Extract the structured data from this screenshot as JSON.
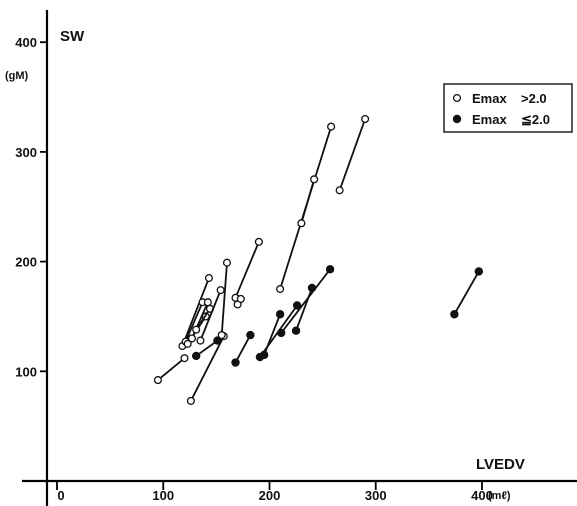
{
  "chart_data": {
    "type": "scatter",
    "xlabel": "LVEDV",
    "xunit": "(mℓ)",
    "ylabel": "SW",
    "yunit": "(gM)",
    "xlim": [
      -10,
      460
    ],
    "ylim": [
      0,
      430
    ],
    "x_ticks": [
      0,
      100,
      200,
      300,
      400
    ],
    "x_tick_labels": [
      "0",
      "100",
      "200",
      "300",
      "400"
    ],
    "y_ticks": [
      100,
      200,
      300,
      400
    ],
    "y_tick_labels": [
      "100",
      "200",
      "300",
      "400"
    ],
    "grid": false,
    "legend_position": "top-right",
    "series": [
      {
        "name": "Emax",
        "condition": ">2.0",
        "marker": "open-circle",
        "pairs": [
          [
            [
              95,
              92
            ],
            [
              120,
              112
            ]
          ],
          [
            [
              118,
              123
            ],
            [
              143,
              185
            ]
          ],
          [
            [
              121,
              127
            ],
            [
              137,
              163
            ]
          ],
          [
            [
              123,
              125
            ],
            [
              140,
              150
            ]
          ],
          [
            [
              127,
              130
            ],
            [
              142,
              163
            ]
          ],
          [
            [
              131,
              138
            ],
            [
              144,
              157
            ]
          ],
          [
            [
              135,
              128
            ],
            [
              154,
              174
            ]
          ],
          [
            [
              126,
              73
            ],
            [
              157,
              132
            ]
          ],
          [
            [
              155,
              133
            ],
            [
              160,
              199
            ]
          ],
          [
            [
              168,
              167
            ],
            [
              190,
              218
            ]
          ],
          [
            [
              170,
              161
            ],
            [
              173,
              166
            ]
          ],
          [
            [
              210,
              175
            ],
            [
              258,
              323
            ]
          ],
          [
            [
              230,
              235
            ],
            [
              242,
              275
            ]
          ],
          [
            [
              266,
              265
            ],
            [
              290,
              330
            ]
          ]
        ]
      },
      {
        "name": "Emax",
        "condition": "≦2.0",
        "marker": "filled-circle",
        "pairs": [
          [
            [
              131,
              114
            ],
            [
              151,
              128
            ]
          ],
          [
            [
              168,
              108
            ],
            [
              182,
              133
            ]
          ],
          [
            [
              191,
              113
            ],
            [
              226,
              160
            ]
          ],
          [
            [
              195,
              115
            ],
            [
              210,
              152
            ]
          ],
          [
            [
              211,
              135
            ],
            [
              257,
              193
            ]
          ],
          [
            [
              225,
              137
            ],
            [
              240,
              176
            ]
          ],
          [
            [
              374,
              152
            ],
            [
              397,
              191
            ]
          ]
        ]
      }
    ]
  }
}
